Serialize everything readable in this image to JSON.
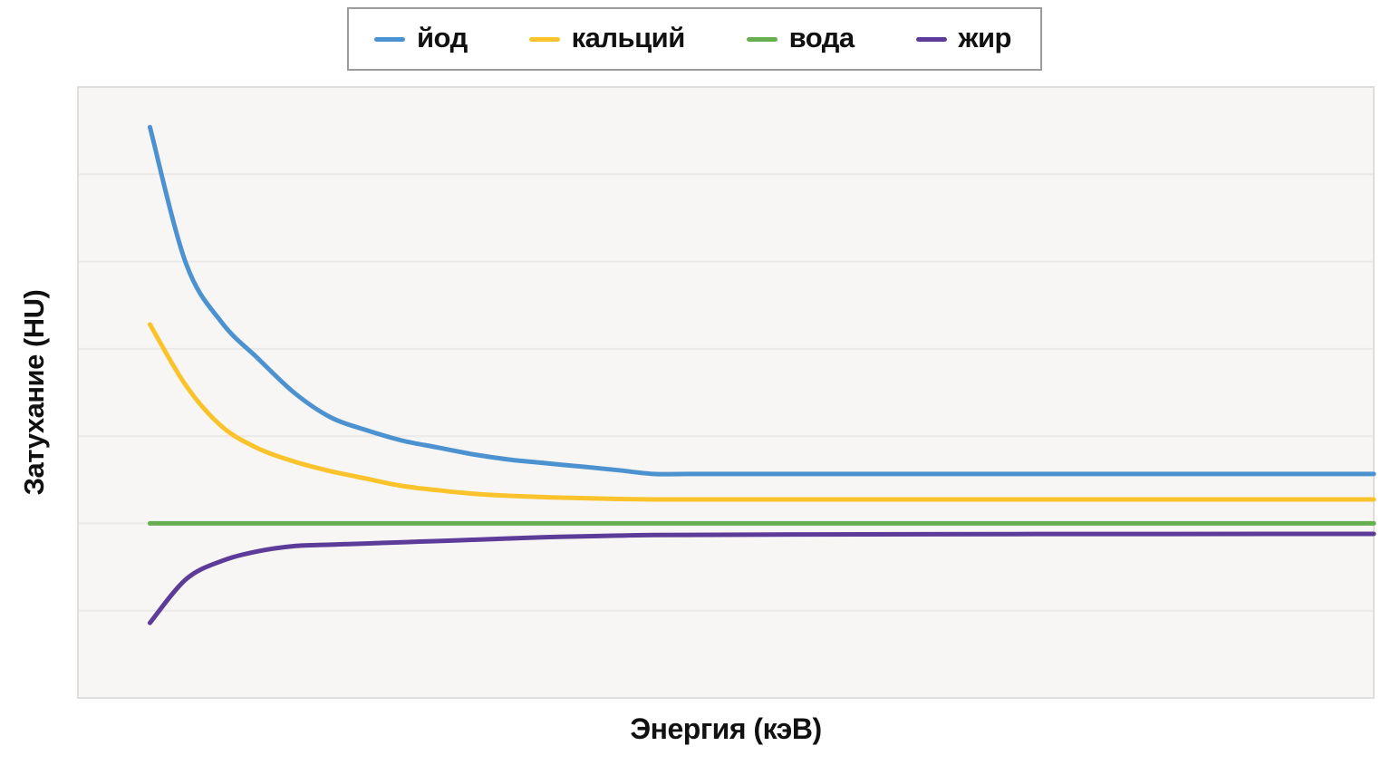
{
  "page": {
    "background": "#ffffff"
  },
  "chart_data": {
    "type": "line",
    "title": "",
    "xlabel": "Энергия (кэВ)",
    "ylabel": "Затухание (HU)",
    "xlim": [
      30,
      210
    ],
    "ylim": [
      -1000,
      2500
    ],
    "y_gridline_step": 500,
    "x_tick_labels": "none",
    "y_tick_labels": "none",
    "grid": "horizontal",
    "legend_position": "top-center",
    "colors": {
      "plot_bg": "#f7f6f4",
      "gridline": "#eae9e8",
      "plot_border": "#e0dedc",
      "legend_border": "#9b9b9b",
      "text": "#111111"
    },
    "series": [
      {
        "id": "iodine",
        "name": "йод",
        "color": "#4D92D0",
        "x": [
          40,
          45,
          50,
          55,
          60,
          65,
          70,
          75,
          80,
          85,
          90,
          95,
          100,
          105,
          110,
          115,
          130,
          210
        ],
        "y": [
          2270,
          1490,
          1150,
          945,
          750,
          610,
          535,
          475,
          435,
          395,
          365,
          345,
          325,
          305,
          283,
          283,
          283,
          283
        ]
      },
      {
        "id": "calcium",
        "name": "кальций",
        "color": "#FBC32B",
        "x": [
          40,
          45,
          50,
          55,
          60,
          65,
          70,
          75,
          80,
          85,
          90,
          95,
          100,
          105,
          110,
          115,
          130,
          210
        ],
        "y": [
          1140,
          790,
          555,
          430,
          355,
          300,
          257,
          215,
          190,
          170,
          158,
          150,
          145,
          140,
          137,
          137,
          137,
          137
        ]
      },
      {
        "id": "water",
        "name": "вода",
        "color": "#66AF50",
        "x": [
          40,
          210
        ],
        "y": [
          0,
          0
        ]
      },
      {
        "id": "fat",
        "name": "жир",
        "color": "#5D3B99",
        "x": [
          40,
          45,
          50,
          55,
          60,
          65,
          70,
          75,
          80,
          85,
          90,
          95,
          100,
          105,
          110,
          130,
          160,
          210
        ],
        "y": [
          -570,
          -320,
          -215,
          -160,
          -130,
          -122,
          -115,
          -108,
          -101,
          -94,
          -86,
          -79,
          -74,
          -70,
          -67,
          -63,
          -61,
          -60
        ]
      }
    ]
  }
}
